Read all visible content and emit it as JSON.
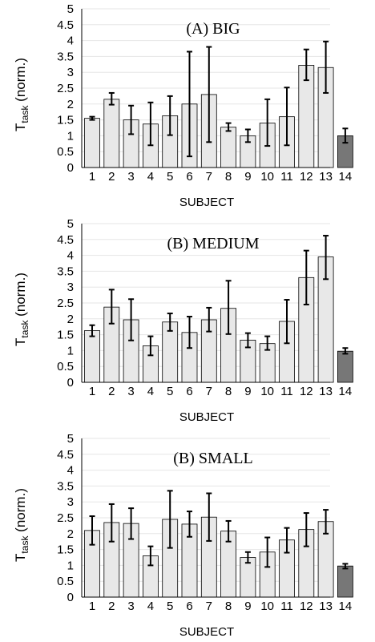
{
  "chart_data": [
    {
      "type": "bar",
      "title": "(A) BIG",
      "xlabel": "SUBJECT",
      "ylabel_main": "T",
      "ylabel_sub": "task",
      "ylabel_suffix": " (norm.)",
      "ylim": [
        0,
        5
      ],
      "yticks": [
        "0",
        "0.5",
        "1",
        "1.5",
        "2",
        "2.5",
        "3",
        "3.5",
        "4",
        "4.5",
        "5"
      ],
      "grid": true,
      "categories": [
        "1",
        "2",
        "3",
        "4",
        "5",
        "6",
        "7",
        "8",
        "9",
        "10",
        "11",
        "12",
        "13",
        "14"
      ],
      "values": [
        1.55,
        2.15,
        1.5,
        1.37,
        1.63,
        2.0,
        2.3,
        1.27,
        1.0,
        1.4,
        1.6,
        3.22,
        3.15,
        1.0
      ],
      "err_low": [
        1.5,
        1.98,
        1.05,
        0.7,
        1.02,
        0.35,
        0.8,
        1.15,
        0.8,
        0.68,
        0.7,
        2.75,
        2.35,
        0.78
      ],
      "err_high": [
        1.6,
        2.35,
        1.95,
        2.05,
        2.25,
        3.65,
        3.8,
        1.4,
        1.2,
        2.15,
        2.52,
        3.72,
        3.97,
        1.23
      ],
      "colors": [
        "#e8e8e8",
        "#e8e8e8",
        "#e8e8e8",
        "#e8e8e8",
        "#e8e8e8",
        "#e8e8e8",
        "#e8e8e8",
        "#e8e8e8",
        "#e8e8e8",
        "#e8e8e8",
        "#e8e8e8",
        "#e8e8e8",
        "#e8e8e8",
        "#777777"
      ]
    },
    {
      "type": "bar",
      "title": "(B) MEDIUM",
      "xlabel": "SUBJECT",
      "ylabel_main": "T",
      "ylabel_sub": "task",
      "ylabel_suffix": " (norm.)",
      "ylim": [
        0,
        5
      ],
      "yticks": [
        "0",
        "0.5",
        "1",
        "1.5",
        "2",
        "2.5",
        "3",
        "3.5",
        "4",
        "4.5",
        "5"
      ],
      "grid": true,
      "categories": [
        "1",
        "2",
        "3",
        "4",
        "5",
        "6",
        "7",
        "8",
        "9",
        "10",
        "11",
        "12",
        "13",
        "14"
      ],
      "values": [
        1.63,
        2.37,
        1.97,
        1.15,
        1.9,
        1.57,
        1.97,
        2.33,
        1.33,
        1.22,
        1.92,
        3.3,
        3.95,
        0.98
      ],
      "err_low": [
        1.45,
        1.85,
        1.32,
        0.85,
        1.62,
        1.08,
        1.6,
        1.52,
        1.1,
        1.02,
        1.23,
        2.45,
        3.25,
        0.9
      ],
      "err_high": [
        1.8,
        2.92,
        2.62,
        1.45,
        2.17,
        2.07,
        2.35,
        3.2,
        1.55,
        1.45,
        2.6,
        4.15,
        4.62,
        1.08
      ],
      "colors": [
        "#e8e8e8",
        "#e8e8e8",
        "#e8e8e8",
        "#e8e8e8",
        "#e8e8e8",
        "#e8e8e8",
        "#e8e8e8",
        "#e8e8e8",
        "#e8e8e8",
        "#e8e8e8",
        "#e8e8e8",
        "#e8e8e8",
        "#e8e8e8",
        "#777777"
      ]
    },
    {
      "type": "bar",
      "title": "(B) SMALL",
      "xlabel": "SUBJECT",
      "ylabel_main": "T",
      "ylabel_sub": "task",
      "ylabel_suffix": " (norm.)",
      "ylim": [
        0,
        5
      ],
      "yticks": [
        "0",
        "0.5",
        "1",
        "1.5",
        "2",
        "2.5",
        "3",
        "3.5",
        "4",
        "4.5",
        "5"
      ],
      "grid": true,
      "categories": [
        "1",
        "2",
        "3",
        "4",
        "5",
        "6",
        "7",
        "8",
        "9",
        "10",
        "11",
        "12",
        "13",
        "14"
      ],
      "values": [
        2.1,
        2.35,
        2.32,
        1.3,
        2.45,
        2.3,
        2.52,
        2.08,
        1.25,
        1.42,
        1.8,
        2.13,
        2.38,
        0.98
      ],
      "err_low": [
        1.65,
        1.75,
        1.83,
        1.0,
        1.55,
        1.9,
        1.77,
        1.75,
        1.08,
        0.95,
        1.4,
        1.6,
        2.0,
        0.9
      ],
      "err_high": [
        2.55,
        2.93,
        2.8,
        1.6,
        3.35,
        2.7,
        3.27,
        2.4,
        1.42,
        1.88,
        2.18,
        2.65,
        2.75,
        1.05
      ],
      "colors": [
        "#e8e8e8",
        "#e8e8e8",
        "#e8e8e8",
        "#e8e8e8",
        "#e8e8e8",
        "#e8e8e8",
        "#e8e8e8",
        "#e8e8e8",
        "#e8e8e8",
        "#e8e8e8",
        "#e8e8e8",
        "#e8e8e8",
        "#e8e8e8",
        "#777777"
      ]
    }
  ]
}
